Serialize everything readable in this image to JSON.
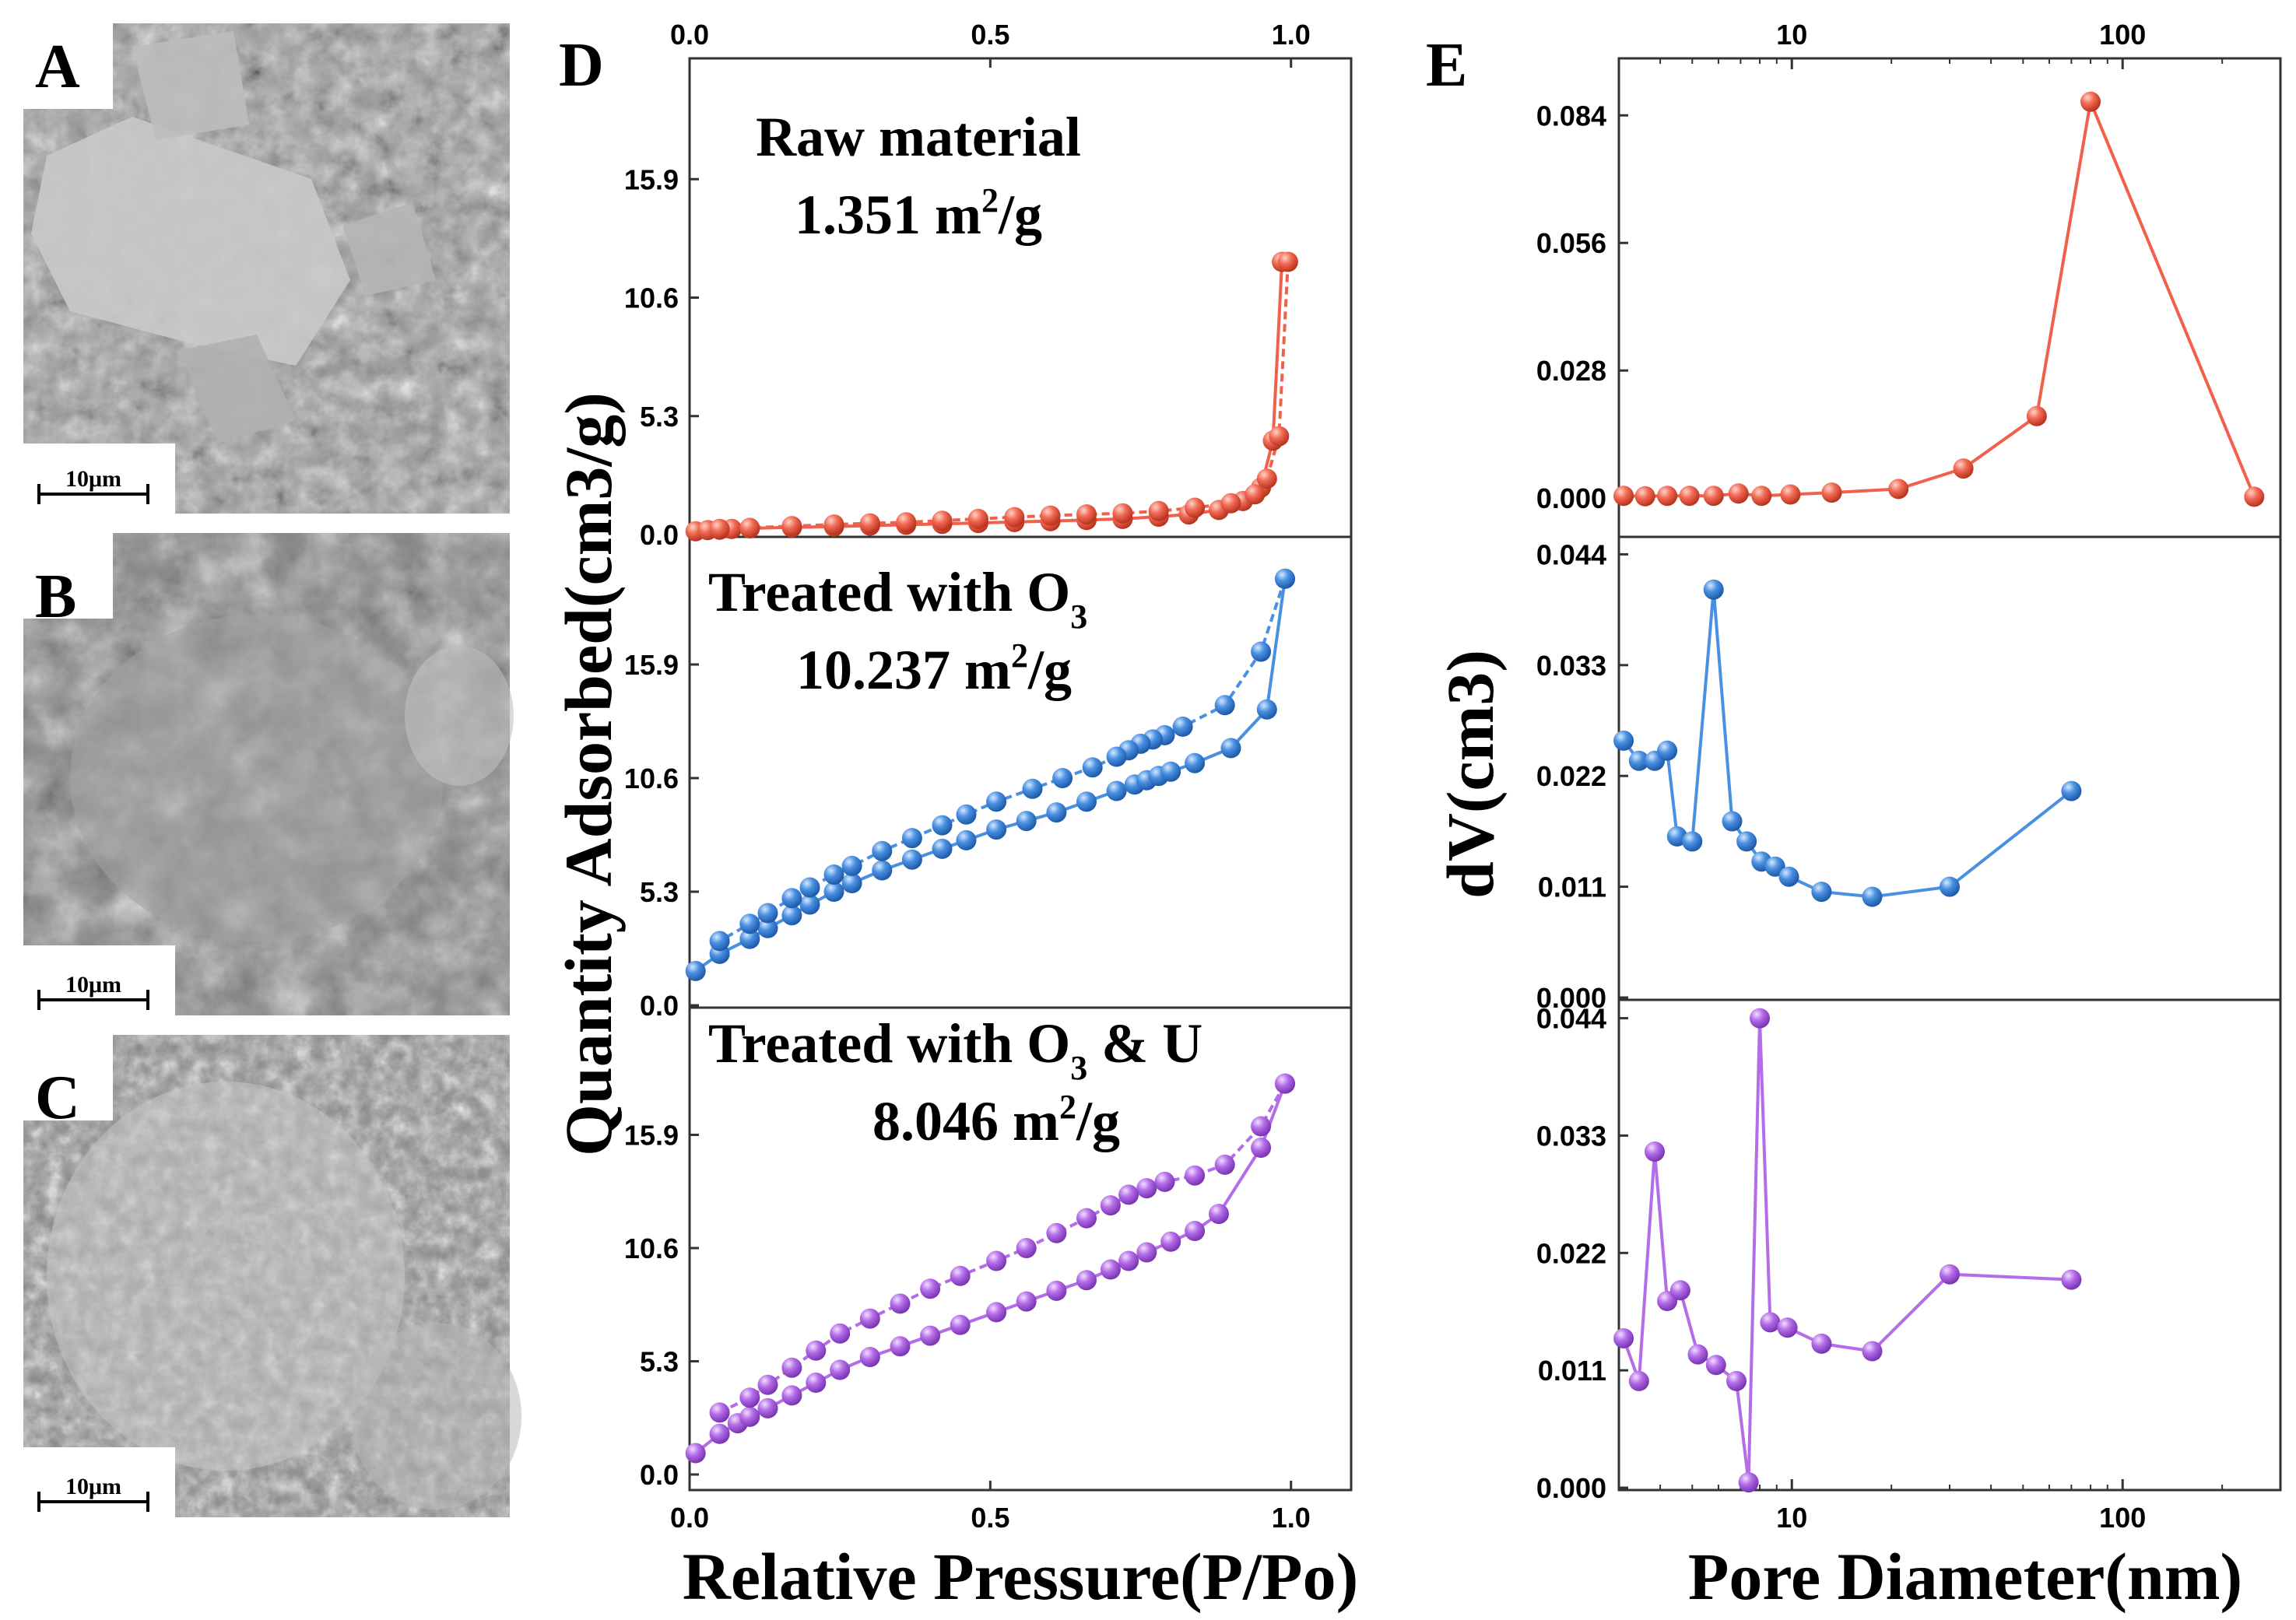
{
  "panels": {
    "A": "A",
    "B": "B",
    "C": "C",
    "D": "D",
    "E": "E"
  },
  "sem": {
    "scale_label": "10μm",
    "images": [
      {
        "id": "A",
        "description": "raw"
      },
      {
        "id": "B",
        "description": "O3"
      },
      {
        "id": "C",
        "description": "O3U"
      }
    ]
  },
  "colors": {
    "raw": "#F0604A",
    "o3": "#4A90E2",
    "o3u": "#B46CE8"
  },
  "chart_data": [
    {
      "type": "line",
      "title": "D",
      "xlabel": "Relative Pressure(P/Po)",
      "ylabel": "Quantity Adsorbed(cm3/g)",
      "xlim": [
        0,
        1.1
      ],
      "x_ticks": [
        "0.0",
        "0.5",
        "1.0"
      ],
      "x_tick_values": [
        0,
        0.5,
        1.0
      ],
      "y_ticks": [
        "0.0",
        "5.3",
        "10.6",
        "15.9"
      ],
      "y_tick_values": [
        0,
        5.3,
        10.6,
        15.9
      ],
      "ylim": [
        0,
        21.2
      ],
      "subplots": [
        {
          "name": "Raw material",
          "annotation_line1": "Raw material",
          "annotation_line2": "1.351 m",
          "annotation_unit": "/g",
          "surface_area": "1.351",
          "color_key": "raw",
          "series": [
            {
              "name": "adsorption",
              "x": [
                0.01,
                0.03,
                0.05,
                0.07,
                0.1,
                0.17,
                0.24,
                0.3,
                0.36,
                0.42,
                0.48,
                0.54,
                0.6,
                0.66,
                0.72,
                0.78,
                0.83,
                0.88,
                0.92,
                0.95,
                0.97,
                0.985
              ],
              "y": [
                0.15,
                0.2,
                0.22,
                0.25,
                0.28,
                0.32,
                0.36,
                0.4,
                0.44,
                0.48,
                0.52,
                0.56,
                0.6,
                0.65,
                0.7,
                0.8,
                0.9,
                1.1,
                1.5,
                2.1,
                4.2,
                12.2
              ]
            },
            {
              "name": "desorption",
              "x": [
                0.995,
                0.98,
                0.96,
                0.94,
                0.9,
                0.84,
                0.78,
                0.72,
                0.66,
                0.6,
                0.54,
                0.48,
                0.42,
                0.36,
                0.3,
                0.24,
                0.17,
                0.1,
                0.05
              ],
              "y": [
                12.2,
                4.4,
                2.5,
                1.8,
                1.4,
                1.2,
                1.05,
                0.95,
                0.9,
                0.85,
                0.78,
                0.7,
                0.62,
                0.55,
                0.5,
                0.45,
                0.38,
                0.3,
                0.25
              ]
            }
          ]
        },
        {
          "name": "Treated with O3",
          "annotation_line1": "Treated with O",
          "annotation_sub": "3",
          "annotation_line2": "10.237 m",
          "annotation_unit": "/g",
          "surface_area": "10.237",
          "color_key": "o3",
          "series": [
            {
              "name": "adsorption",
              "x": [
                0.01,
                0.05,
                0.1,
                0.13,
                0.17,
                0.2,
                0.24,
                0.27,
                0.32,
                0.37,
                0.42,
                0.46,
                0.51,
                0.56,
                0.61,
                0.66,
                0.71,
                0.74,
                0.76,
                0.78,
                0.8,
                0.84,
                0.9,
                0.96,
                0.99
              ],
              "y": [
                1.6,
                2.4,
                3.1,
                3.6,
                4.2,
                4.7,
                5.3,
                5.7,
                6.3,
                6.8,
                7.3,
                7.7,
                8.2,
                8.6,
                9.0,
                9.5,
                10.0,
                10.3,
                10.5,
                10.7,
                10.9,
                11.3,
                12.0,
                13.8,
                19.9
              ]
            },
            {
              "name": "desorption",
              "x": [
                0.99,
                0.95,
                0.89,
                0.82,
                0.79,
                0.77,
                0.75,
                0.73,
                0.71,
                0.67,
                0.62,
                0.57,
                0.51,
                0.46,
                0.42,
                0.37,
                0.32,
                0.27,
                0.24,
                0.2,
                0.17,
                0.13,
                0.1,
                0.05
              ],
              "y": [
                19.9,
                16.5,
                14.0,
                13.0,
                12.6,
                12.4,
                12.2,
                11.9,
                11.6,
                11.1,
                10.6,
                10.1,
                9.5,
                8.9,
                8.4,
                7.8,
                7.2,
                6.5,
                6.1,
                5.5,
                5.0,
                4.3,
                3.8,
                3.0
              ]
            }
          ]
        },
        {
          "name": "Treated with O3 & U",
          "annotation_line1": "Treated with O",
          "annotation_sub": "3",
          "annotation_line1b": " & U",
          "annotation_line2": "8.046 m",
          "annotation_unit": "/g",
          "surface_area": "8.046",
          "color_key": "o3u",
          "series": [
            {
              "name": "adsorption",
              "x": [
                0.01,
                0.05,
                0.08,
                0.1,
                0.13,
                0.17,
                0.21,
                0.25,
                0.3,
                0.35,
                0.4,
                0.45,
                0.51,
                0.56,
                0.61,
                0.66,
                0.7,
                0.73,
                0.76,
                0.8,
                0.84,
                0.88,
                0.95,
                0.99
              ],
              "y": [
                1.0,
                1.9,
                2.4,
                2.7,
                3.1,
                3.7,
                4.3,
                4.9,
                5.5,
                6.0,
                6.5,
                7.0,
                7.6,
                8.1,
                8.6,
                9.1,
                9.6,
                10.0,
                10.4,
                10.9,
                11.4,
                12.2,
                15.3,
                18.3
              ]
            },
            {
              "name": "desorption",
              "x": [
                0.99,
                0.95,
                0.89,
                0.84,
                0.79,
                0.76,
                0.73,
                0.7,
                0.66,
                0.61,
                0.56,
                0.51,
                0.45,
                0.4,
                0.35,
                0.3,
                0.25,
                0.21,
                0.17,
                0.13,
                0.1,
                0.05
              ],
              "y": [
                18.3,
                16.3,
                14.5,
                14.0,
                13.7,
                13.4,
                13.1,
                12.6,
                12.0,
                11.3,
                10.6,
                10.0,
                9.3,
                8.7,
                8.0,
                7.3,
                6.6,
                5.8,
                5.0,
                4.2,
                3.6,
                2.9
              ]
            }
          ]
        }
      ]
    },
    {
      "type": "line",
      "title": "E",
      "xscale": "log",
      "xlabel": "Pore Diameter(nm)",
      "ylabel": "dV(cm3)",
      "xlim": [
        3,
        300
      ],
      "x_ticks": [
        "10",
        "100"
      ],
      "x_tick_values": [
        10,
        100
      ],
      "subplots": [
        {
          "name": "Raw material",
          "color_key": "raw",
          "ylim": [
            -0.008,
            0.096
          ],
          "y_ticks": [
            "0.000",
            "0.028",
            "0.056",
            "0.084"
          ],
          "y_tick_values": [
            0,
            0.028,
            0.056,
            0.084
          ],
          "x": [
            3.1,
            3.6,
            4.2,
            4.9,
            5.8,
            6.9,
            8.1,
            9.9,
            13.2,
            21,
            33,
            55,
            80,
            250
          ],
          "y": [
            0.0005,
            0.0004,
            0.0005,
            0.0005,
            0.0005,
            0.001,
            0.0005,
            0.0008,
            0.0012,
            0.002,
            0.0065,
            0.018,
            0.087,
            0.0003
          ]
        },
        {
          "name": "Treated with O3",
          "color_key": "o3",
          "ylim": [
            0,
            0.0455
          ],
          "y_ticks": [
            "0.000",
            "0.011",
            "0.022",
            "0.033",
            "0.044"
          ],
          "y_tick_values": [
            0,
            0.011,
            0.022,
            0.033,
            0.044
          ],
          "x": [
            3.1,
            3.45,
            3.85,
            4.2,
            4.5,
            5.0,
            5.8,
            6.6,
            7.3,
            8.1,
            8.9,
            9.8,
            12.3,
            17.5,
            30,
            70
          ],
          "y": [
            0.0255,
            0.0235,
            0.0235,
            0.0245,
            0.016,
            0.0155,
            0.0405,
            0.0175,
            0.0155,
            0.0135,
            0.013,
            0.012,
            0.0105,
            0.01,
            0.011,
            0.0205
          ]
        },
        {
          "name": "Treated with O3 & U",
          "color_key": "o3u",
          "ylim": [
            0,
            0.0455
          ],
          "y_ticks": [
            "0.000",
            "0.011",
            "0.022",
            "0.033",
            "0.044"
          ],
          "y_tick_values": [
            0,
            0.011,
            0.022,
            0.033,
            0.044
          ],
          "x": [
            3.1,
            3.45,
            3.85,
            4.2,
            4.6,
            5.2,
            5.9,
            6.8,
            7.4,
            8.0,
            8.6,
            9.7,
            12.3,
            17.5,
            30,
            70
          ],
          "y": [
            0.014,
            0.01,
            0.0315,
            0.0175,
            0.0185,
            0.0125,
            0.0115,
            0.01,
            0.0005,
            0.044,
            0.0155,
            0.015,
            0.0135,
            0.0128,
            0.02,
            0.0195
          ]
        }
      ]
    }
  ]
}
